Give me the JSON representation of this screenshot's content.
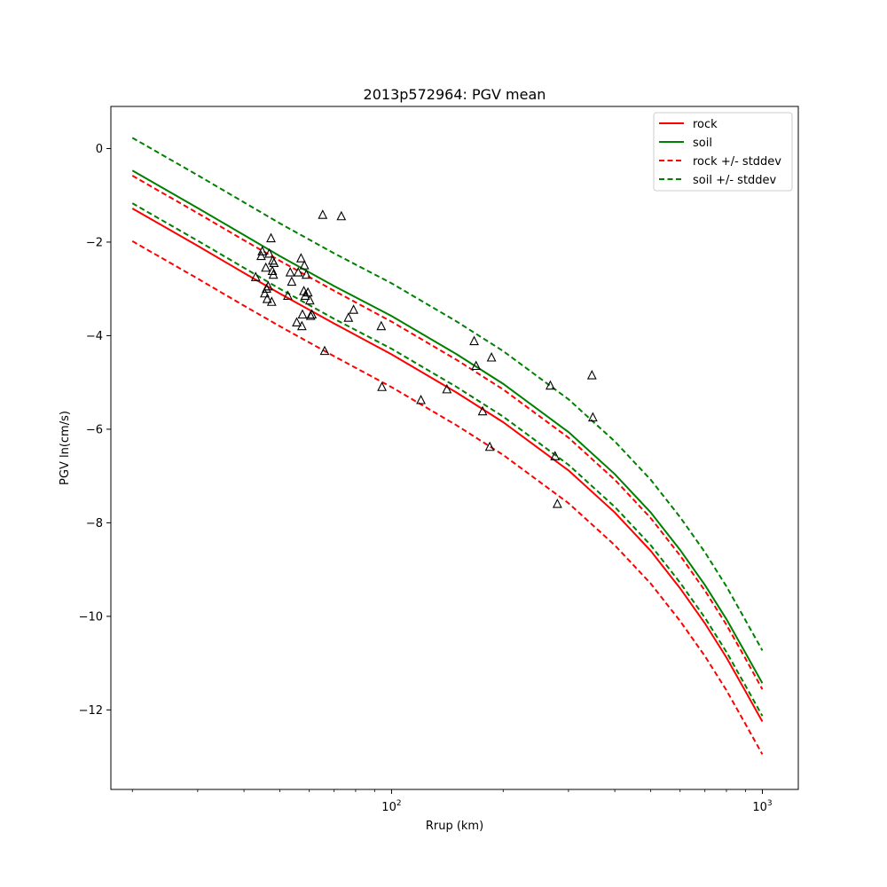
{
  "chart_data": {
    "type": "scatter",
    "title": "2013p572964: PGV mean",
    "xlabel": "Rrup (km)",
    "ylabel": "PGV ln(cm/s)",
    "xscale": "log",
    "xlim": [
      17.5,
      1250
    ],
    "ylim": [
      -13.7,
      0.9
    ],
    "grid": false,
    "legend_position": "top-right",
    "x_ticks": [
      {
        "value": 100,
        "base": "10",
        "exp": "2"
      },
      {
        "value": 1000,
        "base": "10",
        "exp": "3"
      }
    ],
    "x_minor_ticks": [
      20,
      30,
      40,
      50,
      60,
      70,
      80,
      90,
      200,
      300,
      400,
      500,
      600,
      700,
      800,
      900
    ],
    "y_ticks": [
      {
        "value": 0,
        "label": "0"
      },
      {
        "value": -2,
        "label": "−2"
      },
      {
        "value": -4,
        "label": "−4"
      },
      {
        "value": -6,
        "label": "−6"
      },
      {
        "value": -8,
        "label": "−8"
      },
      {
        "value": -10,
        "label": "−10"
      },
      {
        "value": -12,
        "label": "−12"
      }
    ],
    "x": [
      20,
      30,
      40,
      50,
      70,
      100,
      150,
      200,
      300,
      400,
      500,
      600,
      700,
      800,
      900,
      1000
    ],
    "series": [
      {
        "name": "rock",
        "color": "#ff0000",
        "dash": false,
        "y": [
          -1.28,
          -2.08,
          -2.66,
          -3.1,
          -3.74,
          -4.4,
          -5.22,
          -5.85,
          -6.88,
          -7.78,
          -8.6,
          -9.4,
          -10.15,
          -10.88,
          -11.6,
          -12.25
        ]
      },
      {
        "name": "soil",
        "color": "#008000",
        "dash": false,
        "y": [
          -0.47,
          -1.27,
          -1.85,
          -2.3,
          -2.94,
          -3.58,
          -4.4,
          -5.03,
          -6.06,
          -6.96,
          -7.78,
          -8.58,
          -9.33,
          -10.06,
          -10.78,
          -11.43
        ]
      },
      {
        "name": "rock +/- stddev",
        "color": "#ff0000",
        "dash": true,
        "y": [
          -0.58,
          -1.38,
          -1.96,
          -2.4,
          -3.04,
          -3.7,
          -4.52,
          -5.15,
          -6.18,
          -7.08,
          -7.9,
          -8.7,
          -9.45,
          -10.18,
          -10.9,
          -11.56
        ]
      },
      {
        "name": "rock +/- stddev",
        "color": "#ff0000",
        "dash": true,
        "legend": false,
        "y": [
          -1.98,
          -2.78,
          -3.36,
          -3.8,
          -4.44,
          -5.1,
          -5.92,
          -6.55,
          -7.58,
          -8.48,
          -9.3,
          -10.1,
          -10.85,
          -11.58,
          -12.3,
          -12.95
        ]
      },
      {
        "name": "soil +/- stddev",
        "color": "#008000",
        "dash": true,
        "y": [
          0.23,
          -0.57,
          -1.15,
          -1.6,
          -2.24,
          -2.88,
          -3.7,
          -4.33,
          -5.36,
          -6.26,
          -7.08,
          -7.88,
          -8.63,
          -9.36,
          -10.08,
          -10.73
        ]
      },
      {
        "name": "soil +/- stddev",
        "color": "#008000",
        "dash": true,
        "legend": false,
        "y": [
          -1.17,
          -1.97,
          -2.55,
          -3.0,
          -3.64,
          -4.28,
          -5.1,
          -5.73,
          -6.76,
          -7.66,
          -8.48,
          -9.28,
          -10.03,
          -10.76,
          -11.48,
          -12.13
        ]
      }
    ],
    "observations": [
      [
        43,
        -2.75
      ],
      [
        44.5,
        -2.3
      ],
      [
        44.8,
        -2.2
      ],
      [
        45.5,
        -3.1
      ],
      [
        45.8,
        -2.55
      ],
      [
        46,
        -3.0
      ],
      [
        46.2,
        -3.22
      ],
      [
        46.5,
        -2.95
      ],
      [
        46.8,
        -2.25
      ],
      [
        47.3,
        -1.92
      ],
      [
        47.5,
        -3.28
      ],
      [
        47.7,
        -2.62
      ],
      [
        47.8,
        -2.4
      ],
      [
        48,
        -2.7
      ],
      [
        48.2,
        -2.45
      ],
      [
        52.5,
        -3.15
      ],
      [
        53.3,
        -2.65
      ],
      [
        53.8,
        -2.85
      ],
      [
        55.5,
        -3.72
      ],
      [
        56,
        -2.65
      ],
      [
        57,
        -2.35
      ],
      [
        57.3,
        -3.8
      ],
      [
        57.5,
        -3.55
      ],
      [
        58,
        -3.05
      ],
      [
        58.2,
        -2.5
      ],
      [
        58.5,
        -3.15
      ],
      [
        58.9,
        -2.7
      ],
      [
        59.5,
        -3.08
      ],
      [
        60.2,
        -3.25
      ],
      [
        60.5,
        -3.58
      ],
      [
        61,
        -3.55
      ],
      [
        65.2,
        -1.42
      ],
      [
        66,
        -4.33
      ],
      [
        73.2,
        -1.45
      ],
      [
        76.5,
        -3.62
      ],
      [
        79,
        -3.45
      ],
      [
        93.8,
        -3.8
      ],
      [
        94.2,
        -5.1
      ],
      [
        120,
        -5.38
      ],
      [
        141,
        -5.15
      ],
      [
        167,
        -4.12
      ],
      [
        169,
        -4.65
      ],
      [
        176,
        -5.62
      ],
      [
        184,
        -6.38
      ],
      [
        186,
        -4.47
      ],
      [
        268,
        -5.07
      ],
      [
        276,
        -6.58
      ],
      [
        280,
        -7.6
      ],
      [
        347,
        -4.85
      ],
      [
        349,
        -5.75
      ]
    ]
  }
}
